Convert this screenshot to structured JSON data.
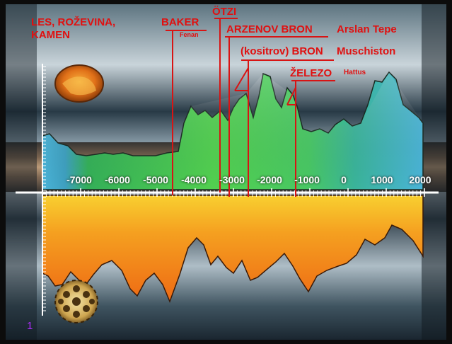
{
  "labels": {
    "wood": "LES, ROŽEVINA,",
    "wood2": "KAMEN",
    "baker": "BAKER",
    "fenan": "Fenan",
    "otzi": "ÖTZI",
    "arzenov": "ARZENOV BRON",
    "arslan": "Arslan Tepe",
    "kositrov": "(kositrov) BRON",
    "muschiston": "Muschiston",
    "zelezo": "ŽELEZO",
    "hattus": "Hattus"
  },
  "axis": {
    "ticks": [
      "-7000",
      "-6000",
      "-5000",
      "-4000",
      "-3000",
      "-2000",
      "-1000",
      "0",
      "1000",
      "2000"
    ]
  },
  "slide_number": "1",
  "colors": {
    "label_red": "#e01010",
    "upper_green": "#52d050",
    "upper_blue": "#4ab4d8",
    "lower_orange": "#f28a18",
    "lower_yellow": "#f8d030",
    "slide_number": "#b02cff"
  }
}
